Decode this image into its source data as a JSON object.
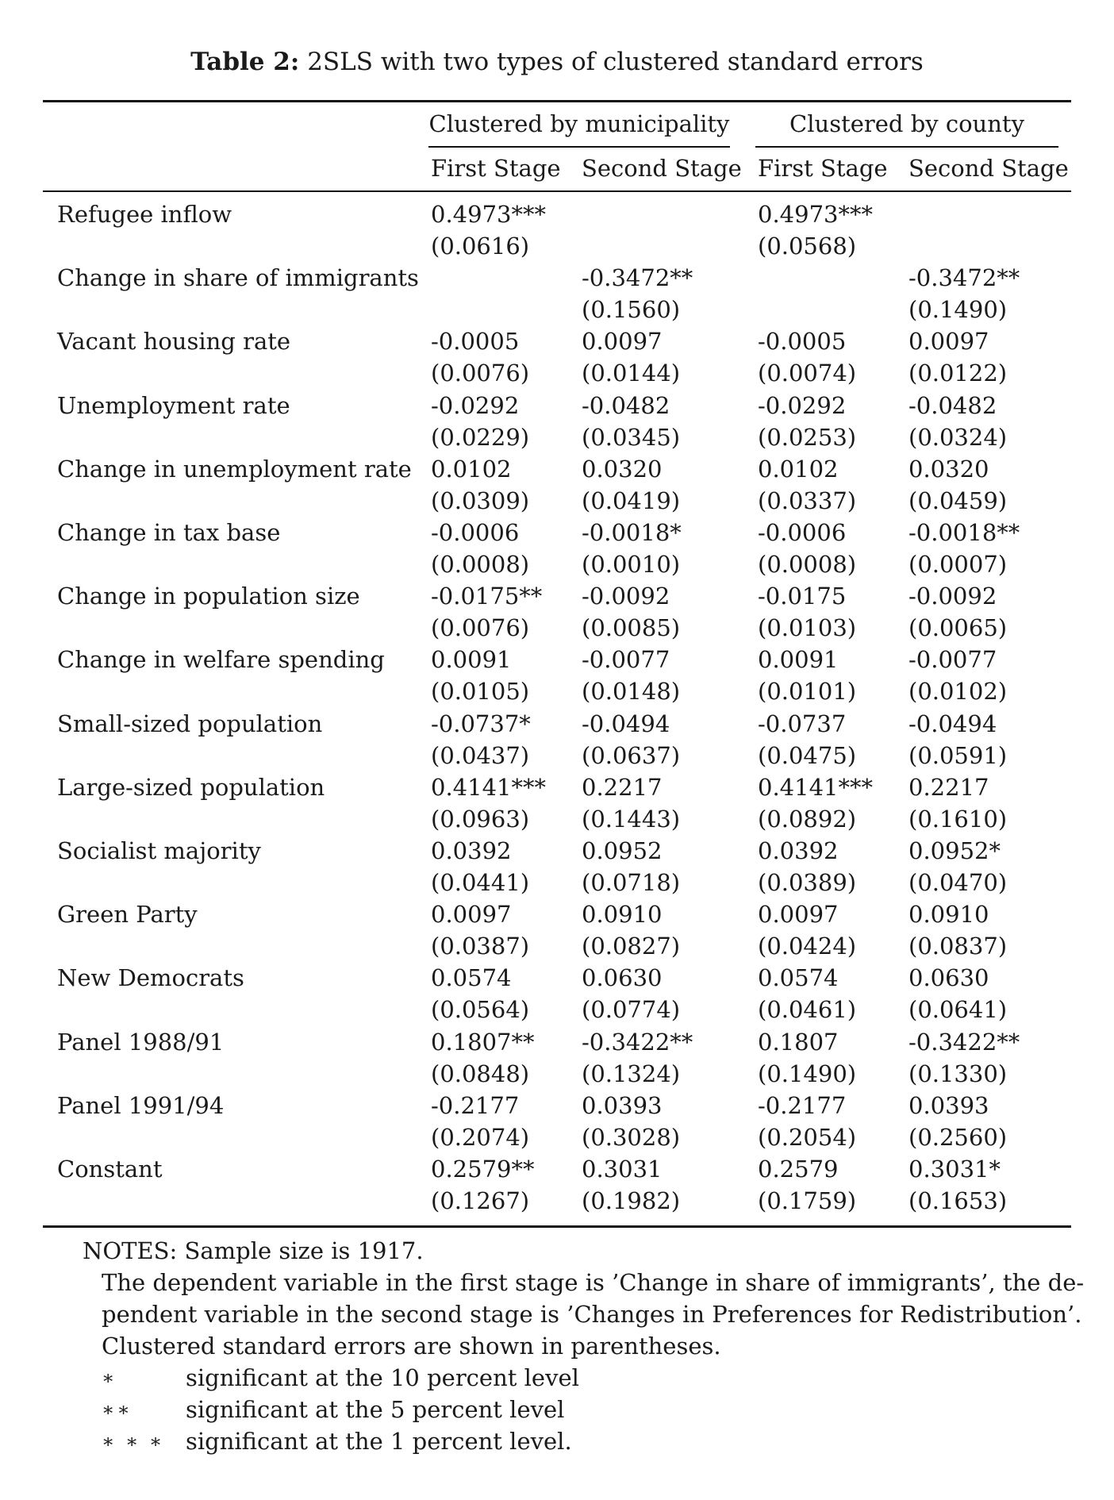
{
  "caption": {
    "label": "Table 2:",
    "text": "2SLS with two types of clustered standard errors"
  },
  "groups": [
    "Clustered by municipality",
    "Clustered by county"
  ],
  "subheaders": [
    "First Stage",
    "Second Stage",
    "First Stage",
    "Second Stage"
  ],
  "rows": [
    {
      "label": "Refugee inflow",
      "coef": [
        "0.4973***",
        "",
        "0.4973***",
        ""
      ],
      "se": [
        "(0.0616)",
        "",
        "(0.0568)",
        ""
      ]
    },
    {
      "label": "Change in share of immigrants",
      "coef": [
        "",
        "-0.3472**",
        "",
        "-0.3472**"
      ],
      "se": [
        "",
        "(0.1560)",
        "",
        "(0.1490)"
      ]
    },
    {
      "label": "Vacant housing rate",
      "coef": [
        "-0.0005",
        "0.0097",
        "-0.0005",
        "0.0097"
      ],
      "se": [
        "(0.0076)",
        "(0.0144)",
        "(0.0074)",
        "(0.0122)"
      ]
    },
    {
      "label": "Unemployment rate",
      "coef": [
        "-0.0292",
        "-0.0482",
        "-0.0292",
        "-0.0482"
      ],
      "se": [
        "(0.0229)",
        "(0.0345)",
        "(0.0253)",
        "(0.0324)"
      ]
    },
    {
      "label": "Change in unemployment rate",
      "coef": [
        "0.0102",
        "0.0320",
        "0.0102",
        "0.0320"
      ],
      "se": [
        "(0.0309)",
        "(0.0419)",
        "(0.0337)",
        "(0.0459)"
      ]
    },
    {
      "label": "Change in tax base",
      "coef": [
        "-0.0006",
        "-0.0018*",
        "-0.0006",
        "-0.0018**"
      ],
      "se": [
        "(0.0008)",
        "(0.0010)",
        "(0.0008)",
        "(0.0007)"
      ]
    },
    {
      "label": "Change in population size",
      "coef": [
        "-0.0175**",
        "-0.0092",
        "-0.0175",
        "-0.0092"
      ],
      "se": [
        "(0.0076)",
        "(0.0085)",
        "(0.0103)",
        "(0.0065)"
      ]
    },
    {
      "label": "Change in welfare spending",
      "coef": [
        "0.0091",
        "-0.0077",
        "0.0091",
        "-0.0077"
      ],
      "se": [
        "(0.0105)",
        "(0.0148)",
        "(0.0101)",
        "(0.0102)"
      ]
    },
    {
      "label": "Small-sized population",
      "coef": [
        "-0.0737*",
        "-0.0494",
        "-0.0737",
        "-0.0494"
      ],
      "se": [
        "(0.0437)",
        "(0.0637)",
        "(0.0475)",
        "(0.0591)"
      ]
    },
    {
      "label": "Large-sized population",
      "coef": [
        "0.4141***",
        "0.2217",
        "0.4141***",
        "0.2217"
      ],
      "se": [
        "(0.0963)",
        "(0.1443)",
        "(0.0892)",
        "(0.1610)"
      ]
    },
    {
      "label": "Socialist majority",
      "coef": [
        "0.0392",
        "0.0952",
        "0.0392",
        "0.0952*"
      ],
      "se": [
        "(0.0441)",
        "(0.0718)",
        "(0.0389)",
        "(0.0470)"
      ]
    },
    {
      "label": "Green Party",
      "coef": [
        "0.0097",
        "0.0910",
        "0.0097",
        "0.0910"
      ],
      "se": [
        "(0.0387)",
        "(0.0827)",
        "(0.0424)",
        "(0.0837)"
      ]
    },
    {
      "label": "New Democrats",
      "coef": [
        "0.0574",
        "0.0630",
        "0.0574",
        "0.0630"
      ],
      "se": [
        "(0.0564)",
        "(0.0774)",
        "(0.0461)",
        "(0.0641)"
      ]
    },
    {
      "label": "Panel 1988/91",
      "coef": [
        "0.1807**",
        "-0.3422**",
        "0.1807",
        "-0.3422**"
      ],
      "se": [
        "(0.0848)",
        "(0.1324)",
        "(0.1490)",
        "(0.1330)"
      ]
    },
    {
      "label": "Panel 1991/94",
      "coef": [
        "-0.2177",
        "0.0393",
        "-0.2177",
        "0.0393"
      ],
      "se": [
        "(0.2074)",
        "(0.3028)",
        "(0.2054)",
        "(0.2560)"
      ]
    },
    {
      "label": "Constant",
      "coef": [
        "0.2579**",
        "0.3031",
        "0.2579",
        "0.3031*"
      ],
      "se": [
        "(0.1267)",
        "(0.1982)",
        "(0.1759)",
        "(0.1653)"
      ]
    }
  ],
  "notes": {
    "line1": "NOTES: Sample size is 1917.",
    "line2": "The dependent variable in the first stage is ’Change in share of immigrants’, the de-",
    "line3": "pendent variable in the second stage is ’Changes in Preferences for Redistribution’.",
    "line4": "Clustered standard errors are shown in parentheses.",
    "significance": [
      {
        "symbol": "∗",
        "text": "significant at the 10 percent level"
      },
      {
        "symbol": "∗∗",
        "text": "significant at the 5 percent level"
      },
      {
        "symbol": "∗ ∗ ∗",
        "text": "significant at the 1 percent level."
      }
    ]
  }
}
